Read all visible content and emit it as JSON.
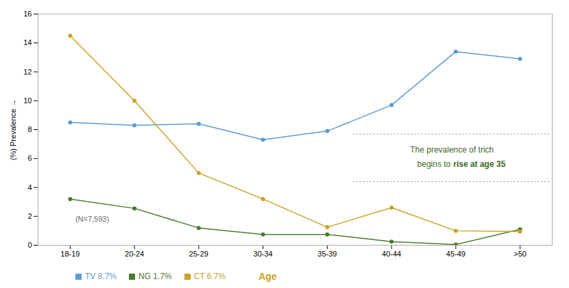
{
  "chart_data": {
    "type": "line",
    "categories": [
      "18-19",
      "20-24",
      "25-29",
      "30-34",
      "35-39",
      "40-44",
      "45-49",
      ">50"
    ],
    "series": [
      {
        "name": "TV 8.7%",
        "color": "#5B9BD5",
        "values": [
          8.5,
          8.3,
          8.4,
          7.3,
          7.9,
          9.7,
          13.4,
          12.9
        ]
      },
      {
        "name": "NG 1.7%",
        "color": "#4A7C2F",
        "values": [
          3.2,
          2.55,
          1.2,
          0.75,
          0.75,
          0.25,
          0.05,
          1.1
        ]
      },
      {
        "name": "CT 6.7%",
        "color": "#C9A227",
        "values": [
          14.5,
          10.0,
          5.0,
          3.2,
          1.25,
          2.6,
          1.0,
          0.95
        ]
      }
    ],
    "ylim": [
      0,
      16
    ],
    "yticks": [
      0,
      2,
      4,
      6,
      8,
      10,
      12,
      14,
      16
    ],
    "ylabel": "(%) Prevalence",
    "xlabel": "Age",
    "marker": "circle",
    "grid": false,
    "legend": "bottom",
    "annotations": [
      "The prevalence of trich",
      "begins to",
      "rise at age 35"
    ],
    "annotation_lines": [
      7.7,
      4.4
    ],
    "note": "(N=7,593)"
  }
}
